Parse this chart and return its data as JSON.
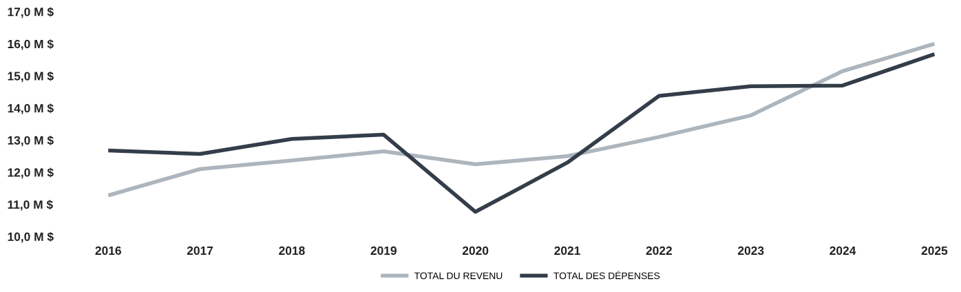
{
  "chart_data": {
    "type": "line",
    "categories": [
      "2016",
      "2017",
      "2018",
      "2019",
      "2020",
      "2021",
      "2022",
      "2023",
      "2024",
      "2025"
    ],
    "series": [
      {
        "name": "TOTAL DU REVENU",
        "color": "#adb5bd",
        "values": [
          11.28,
          12.1,
          12.37,
          12.65,
          12.25,
          12.5,
          13.1,
          13.77,
          15.15,
          16.0
        ]
      },
      {
        "name": "TOTAL DES DÉPENSES",
        "color": "#343e4a",
        "values": [
          12.68,
          12.57,
          13.04,
          13.17,
          10.77,
          12.3,
          14.38,
          14.68,
          14.7,
          15.68
        ]
      }
    ],
    "ylim": [
      10,
      17
    ],
    "yticks": [
      {
        "value": 10,
        "label": "10,0 M $"
      },
      {
        "value": 11,
        "label": "11,0 M $"
      },
      {
        "value": 12,
        "label": "12,0 M $"
      },
      {
        "value": 13,
        "label": "13,0 M $"
      },
      {
        "value": 14,
        "label": "14,0 M $"
      },
      {
        "value": 15,
        "label": "15,0 M $"
      },
      {
        "value": 16,
        "label": "16,0 M $"
      },
      {
        "value": 17,
        "label": "17,0 M $"
      }
    ],
    "grid": false,
    "legend": "bottom",
    "marker": "none",
    "line_style": "solid"
  }
}
